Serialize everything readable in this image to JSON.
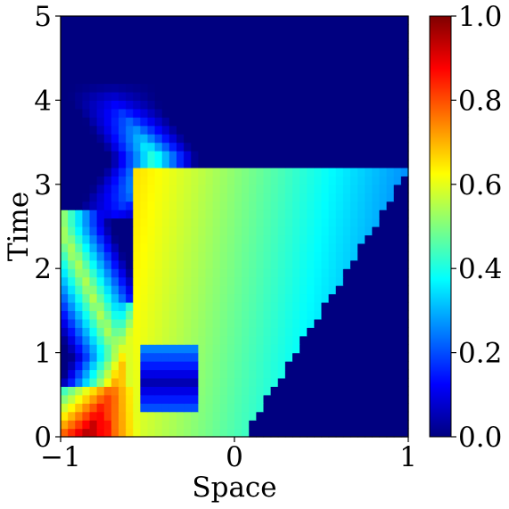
{
  "chart_data": {
    "type": "heatmap",
    "xlabel": "Space",
    "ylabel": "Time",
    "xlim": [
      -1,
      1
    ],
    "ylim": [
      0,
      5
    ],
    "x_ticks": [
      {
        "value": -1,
        "label": "−1"
      },
      {
        "value": 0,
        "label": "0"
      },
      {
        "value": 1,
        "label": "1"
      }
    ],
    "y_ticks": [
      {
        "value": 0,
        "label": "0"
      },
      {
        "value": 1,
        "label": "1"
      },
      {
        "value": 2,
        "label": "2"
      },
      {
        "value": 3,
        "label": "3"
      },
      {
        "value": 4,
        "label": "4"
      },
      {
        "value": 5,
        "label": "5"
      }
    ],
    "colormap": "jet",
    "colorbar": {
      "range": [
        0.0,
        1.0
      ],
      "ticks": [
        {
          "value": 0.0,
          "label": "0.0"
        },
        {
          "value": 0.2,
          "label": "0.2"
        },
        {
          "value": 0.4,
          "label": "0.4"
        },
        {
          "value": 0.6,
          "label": "0.6"
        },
        {
          "value": 0.8,
          "label": "0.8"
        },
        {
          "value": 1.0,
          "label": "1.0"
        }
      ]
    },
    "grid": false,
    "resolution": {
      "nx": 48,
      "nt": 50
    }
  }
}
